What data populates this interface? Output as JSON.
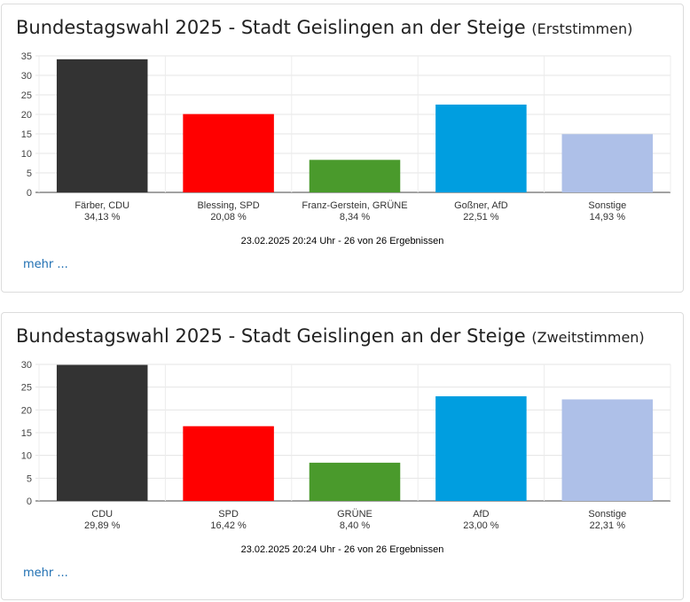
{
  "panels": [
    {
      "title": "Bundestagswahl 2025 - Stadt Geislingen an der Steige",
      "subtitle": "(Erststimmen)",
      "more_label": "mehr ...",
      "footnote": "23.02.2025 20:24 Uhr - 26 von 26 Ergebnissen"
    },
    {
      "title": "Bundestagswahl 2025 - Stadt Geislingen an der Steige",
      "subtitle": "(Zweitstimmen)",
      "more_label": "mehr ...",
      "footnote": "23.02.2025 20:24 Uhr - 26 von 26 Ergebnissen"
    }
  ],
  "chart_data": [
    {
      "type": "bar",
      "title": "Bundestagswahl 2025 - Stadt Geislingen an der Steige (Erststimmen)",
      "categories": [
        "Färber, CDU",
        "Blessing, SPD",
        "Franz-Gerstein, GRÜNE",
        "Goßner, AfD",
        "Sonstige"
      ],
      "values": [
        34.13,
        20.08,
        8.34,
        22.51,
        14.93
      ],
      "value_labels": [
        "34,13 %",
        "20,08 %",
        "8,34 %",
        "22,51 %",
        "14,93 %"
      ],
      "colors": [
        "#333333",
        "#ff0000",
        "#4a9a2c",
        "#009ee0",
        "#aec0e8"
      ],
      "ylim": [
        0,
        35
      ],
      "yticks": [
        0,
        5,
        10,
        15,
        20,
        25,
        30,
        35
      ],
      "xlabel": "",
      "ylabel": "",
      "grid": true
    },
    {
      "type": "bar",
      "title": "Bundestagswahl 2025 - Stadt Geislingen an der Steige (Zweitstimmen)",
      "categories": [
        "CDU",
        "SPD",
        "GRÜNE",
        "AfD",
        "Sonstige"
      ],
      "values": [
        29.89,
        16.42,
        8.4,
        23.0,
        22.31
      ],
      "value_labels": [
        "29,89 %",
        "16,42 %",
        "8,40 %",
        "23,00 %",
        "22,31 %"
      ],
      "colors": [
        "#333333",
        "#ff0000",
        "#4a9a2c",
        "#009ee0",
        "#aec0e8"
      ],
      "ylim": [
        0,
        30
      ],
      "yticks": [
        0,
        5,
        10,
        15,
        20,
        25,
        30
      ],
      "xlabel": "",
      "ylabel": "",
      "grid": true
    }
  ]
}
